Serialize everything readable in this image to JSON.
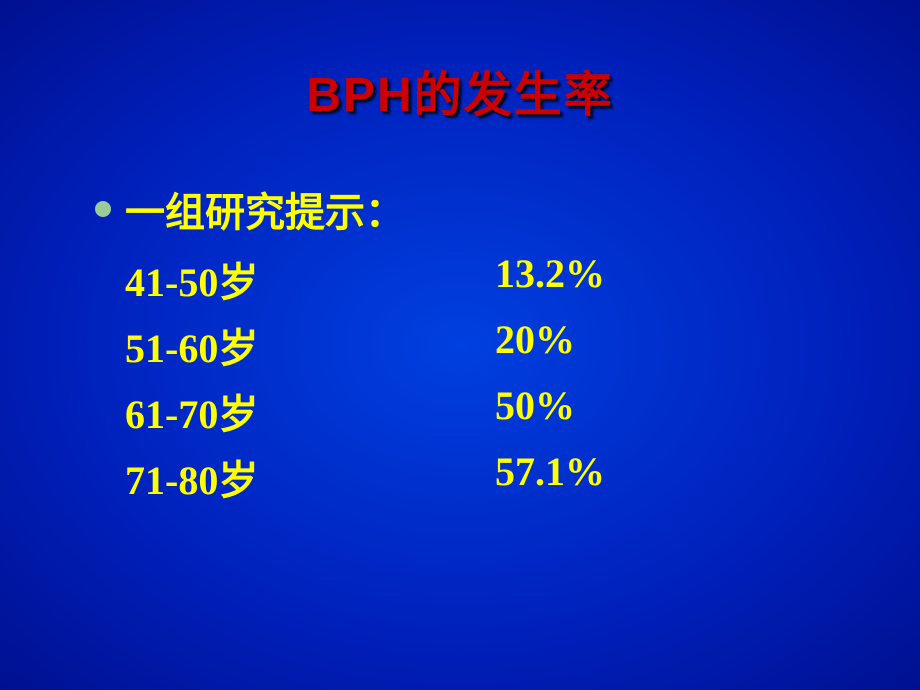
{
  "slide": {
    "title": "BPH的发生率",
    "title_color": "#cc0000",
    "title_fontsize": 48,
    "text_color": "#ffff00",
    "text_fontsize": 40,
    "bullet_color": "#99cc99",
    "background_gradient": [
      "#0040e0",
      "#0020bb",
      "#001090"
    ],
    "intro": "一组研究提示：",
    "rows": [
      {
        "age": "41-50岁",
        "pct": "13.2%"
      },
      {
        "age": "51-60岁",
        "pct": "20%"
      },
      {
        "age": "61-70岁",
        "pct": "50%"
      },
      {
        "age": "71-80岁",
        "pct": "57.1%"
      }
    ]
  }
}
